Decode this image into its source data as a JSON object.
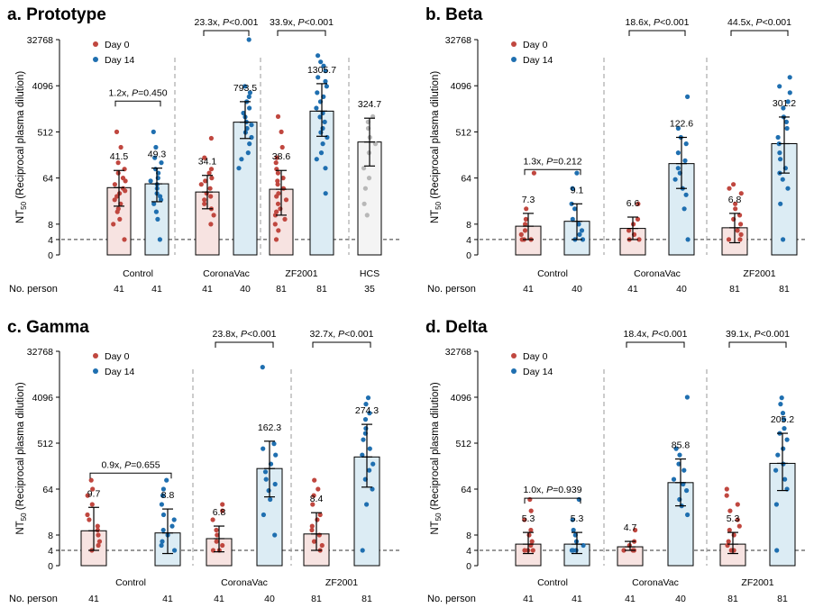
{
  "colors": {
    "day0_point": "#c0473f",
    "day14_point": "#1f6fb0",
    "day0_bar": "#f7e3e1",
    "day14_bar": "#dcecf4",
    "hcs_bar": "#f4f4f4",
    "hcs_point": "#b8b8b8"
  },
  "row_label": "No. person",
  "chart_data": [
    {
      "type": "bar",
      "title": "a. Prototype",
      "ylabel": "NT50 (Reciprocal plasma dilution)",
      "yscale": "log2",
      "ylim": [
        0,
        32768
      ],
      "yticks": [
        "0",
        "4",
        "8",
        "64",
        "512",
        "4096",
        "32768"
      ],
      "limit_of_detection": 4,
      "legend": {
        "position": "top-left",
        "entries": [
          "Day 0",
          "Day 14"
        ]
      },
      "groups": [
        {
          "name": "Control",
          "comparison": "1.2x, P=0.450",
          "bars": [
            {
              "series": "Day 0",
              "gmt": 41.5,
              "label": "41.5",
              "n": "41",
              "ci": [
                18,
                90
              ],
              "points": [
                4,
                8,
                10,
                14,
                16,
                20,
                24,
                28,
                32,
                36,
                40,
                48,
                56,
                64,
                80,
                96,
                128,
                256,
                512
              ]
            },
            {
              "series": "Day 14",
              "gmt": 49.3,
              "label": "49.3",
              "n": "41",
              "ci": [
                22,
                100
              ],
              "points": [
                4,
                10,
                14,
                20,
                24,
                28,
                32,
                40,
                48,
                56,
                64,
                80,
                96,
                128,
                160,
                256,
                512
              ]
            }
          ]
        },
        {
          "name": "CoronaVac",
          "comparison": "23.3x, P<0.001",
          "bars": [
            {
              "series": "Day 0",
              "gmt": 34.1,
              "label": "34.1",
              "n": "41",
              "ci": [
                16,
                72
              ],
              "points": [
                8,
                12,
                16,
                20,
                24,
                28,
                32,
                40,
                48,
                56,
                64,
                80,
                96,
                160,
                384
              ]
            },
            {
              "series": "Day 14",
              "gmt": 793.5,
              "label": "793.5",
              "n": "40",
              "ci": [
                380,
                2000
              ],
              "points": [
                100,
                150,
                200,
                300,
                400,
                500,
                600,
                700,
                800,
                1000,
                1200,
                1500,
                2000,
                2500,
                3000,
                4000,
                32768
              ]
            }
          ]
        },
        {
          "name": "ZF2001",
          "comparison": "33.9x, P<0.001",
          "bars": [
            {
              "series": "Day 0",
              "gmt": 38.6,
              "label": "38.6",
              "n": "81",
              "ci": [
                12,
                90
              ],
              "points": [
                4,
                6,
                8,
                10,
                12,
                14,
                16,
                20,
                24,
                28,
                32,
                40,
                48,
                56,
                64,
                80,
                96,
                128,
                160,
                256,
                512,
                1024
              ]
            },
            {
              "series": "Day 14",
              "gmt": 1305.7,
              "label": "1305.7",
              "n": "81",
              "ci": [
                420,
                4500
              ],
              "points": [
                32,
                100,
                150,
                200,
                300,
                400,
                500,
                600,
                800,
                1000,
                1200,
                1500,
                2000,
                2500,
                3000,
                4000,
                5000,
                6000,
                8000,
                10000,
                12000,
                16000
              ]
            }
          ]
        },
        {
          "name": "HCS",
          "comparison": "",
          "bars": [
            {
              "series": "HCS",
              "gmt": 324.7,
              "label": "324.7",
              "n": "35",
              "ci": [
                110,
                950
              ],
              "points": [
                12,
                20,
                40,
                64,
                100,
                200,
                300,
                400,
                600,
                800,
                1024
              ]
            }
          ]
        }
      ]
    },
    {
      "type": "bar",
      "title": "b. Beta",
      "ylabel": "NT50 (Reciprocal plasma dilution)",
      "yscale": "log2",
      "ylim": [
        0,
        32768
      ],
      "yticks": [
        "0",
        "4",
        "8",
        "64",
        "512",
        "4096",
        "32768"
      ],
      "limit_of_detection": 4,
      "legend": {
        "position": "top-left",
        "entries": [
          "Day 0",
          "Day 14"
        ]
      },
      "groups": [
        {
          "name": "Control",
          "comparison": "1.3x, P=0.212",
          "bars": [
            {
              "series": "Day 0",
              "gmt": 7.3,
              "label": "7.3",
              "n": "41",
              "ci": [
                4,
                13
              ],
              "points": [
                4,
                4,
                4,
                5,
                6,
                8,
                10,
                16,
                80
              ]
            },
            {
              "series": "Day 14",
              "gmt": 9.1,
              "label": "9.1",
              "n": "40",
              "ci": [
                4,
                20
              ],
              "points": [
                4,
                4,
                5,
                6,
                8,
                10,
                16,
                20,
                40,
                80
              ]
            }
          ]
        },
        {
          "name": "CoronaVac",
          "comparison": "18.6x, P<0.001",
          "bars": [
            {
              "series": "Day 0",
              "gmt": 6.6,
              "label": "6.6",
              "n": "41",
              "ci": [
                4,
                11
              ],
              "points": [
                4,
                4,
                5,
                6,
                8,
                10,
                20
              ]
            },
            {
              "series": "Day 14",
              "gmt": 122.6,
              "label": "122.6",
              "n": "40",
              "ci": [
                40,
                400
              ],
              "points": [
                4,
                16,
                30,
                40,
                60,
                80,
                100,
                140,
                200,
                300,
                400,
                600,
                2500
              ]
            }
          ]
        },
        {
          "name": "ZF2001",
          "comparison": "44.5x, P<0.001",
          "bars": [
            {
              "series": "Day 0",
              "gmt": 6.8,
              "label": "6.8",
              "n": "81",
              "ci": [
                3,
                13
              ],
              "points": [
                4,
                4,
                5,
                6,
                8,
                10,
                12,
                16,
                20,
                32,
                40,
                48
              ]
            },
            {
              "series": "Day 14",
              "gmt": 301.2,
              "label": "301.2",
              "n": "81",
              "ci": [
                80,
                1000
              ],
              "points": [
                4,
                20,
                40,
                60,
                80,
                100,
                150,
                200,
                300,
                400,
                600,
                800,
                1000,
                1500,
                2000,
                3000,
                4000,
                6000
              ]
            }
          ]
        }
      ]
    },
    {
      "type": "bar",
      "title": "c. Gamma",
      "ylabel": "NT50 (Reciprocal plasma dilution)",
      "yscale": "log2",
      "ylim": [
        0,
        32768
      ],
      "yticks": [
        "0",
        "4",
        "8",
        "64",
        "512",
        "4096",
        "32768"
      ],
      "limit_of_detection": 4,
      "legend": {
        "position": "top-left",
        "entries": [
          "Day 0",
          "Day 14"
        ]
      },
      "groups": [
        {
          "name": "Control",
          "comparison": "0.9x, P=0.655",
          "bars": [
            {
              "series": "Day 0",
              "gmt": 9.7,
              "label": "9.7",
              "n": "41",
              "ci": [
                4,
                28
              ],
              "points": [
                4,
                5,
                6,
                8,
                10,
                12,
                16,
                20,
                32,
                48,
                64,
                96
              ]
            },
            {
              "series": "Day 14",
              "gmt": 8.8,
              "label": "8.8",
              "n": "41",
              "ci": [
                3,
                26
              ],
              "points": [
                4,
                5,
                6,
                8,
                10,
                12,
                16,
                20,
                32,
                48,
                64,
                96
              ]
            }
          ]
        },
        {
          "name": "CoronaVac",
          "comparison": "23.8x, P<0.001",
          "bars": [
            {
              "series": "Day 0",
              "gmt": 6.8,
              "label": "6.8",
              "n": "41",
              "ci": [
                3.5,
                12
              ],
              "points": [
                4,
                4,
                5,
                6,
                8,
                10,
                16,
                24,
                32
              ]
            },
            {
              "series": "Day 14",
              "gmt": 162.3,
              "label": "162.3",
              "n": "40",
              "ci": [
                45,
                560
              ],
              "points": [
                8,
                20,
                40,
                60,
                80,
                100,
                140,
                200,
                300,
                400,
                500,
                16000
              ]
            }
          ]
        },
        {
          "name": "ZF2001",
          "comparison": "32.7x, P<0.001",
          "bars": [
            {
              "series": "Day 0",
              "gmt": 8.4,
              "label": "8.4",
              "n": "81",
              "ci": [
                4,
                22
              ],
              "points": [
                4,
                5,
                6,
                8,
                10,
                12,
                16,
                20,
                32,
                48,
                64,
                96
              ]
            },
            {
              "series": "Day 14",
              "gmt": 274.3,
              "label": "274.3",
              "n": "81",
              "ci": [
                70,
                1200
              ],
              "points": [
                4,
                32,
                64,
                100,
                150,
                200,
                300,
                400,
                600,
                800,
                1000,
                1500,
                2000,
                3000,
                4000
              ]
            }
          ]
        }
      ]
    },
    {
      "type": "bar",
      "title": "d. Delta",
      "ylabel": "NT50 (Reciprocal plasma dilution)",
      "yscale": "log2",
      "ylim": [
        0,
        32768
      ],
      "yticks": [
        "0",
        "4",
        "8",
        "64",
        "512",
        "4096",
        "32768"
      ],
      "limit_of_detection": 4,
      "legend": {
        "position": "top-left",
        "entries": [
          "Day 0",
          "Day 14"
        ]
      },
      "groups": [
        {
          "name": "Control",
          "comparison": "1.0x, P=0.939",
          "bars": [
            {
              "series": "Day 0",
              "gmt": 5.3,
              "label": "5.3",
              "n": "41",
              "ci": [
                3,
                9
              ],
              "points": [
                4,
                4,
                4,
                5,
                6,
                8,
                10,
                16,
                24,
                40
              ]
            },
            {
              "series": "Day 14",
              "gmt": 5.3,
              "label": "5.3",
              "n": "41",
              "ci": [
                3,
                9
              ],
              "points": [
                4,
                4,
                4,
                5,
                6,
                8,
                10,
                16,
                40
              ]
            }
          ]
        },
        {
          "name": "CoronaVac",
          "comparison": "18.4x, P<0.001",
          "bars": [
            {
              "series": "Day 0",
              "gmt": 4.7,
              "label": "4.7",
              "n": "41",
              "ci": [
                4,
                6
              ],
              "points": [
                4,
                4,
                4,
                5,
                6,
                10
              ]
            },
            {
              "series": "Day 14",
              "gmt": 85.8,
              "label": "85.8",
              "n": "40",
              "ci": [
                30,
                250
              ],
              "points": [
                20,
                30,
                40,
                60,
                80,
                100,
                150,
                200,
                300,
                400,
                4096
              ]
            }
          ]
        },
        {
          "name": "ZF2001",
          "comparison": "39.1x, P<0.001",
          "bars": [
            {
              "series": "Day 0",
              "gmt": 5.3,
              "label": "5.3",
              "n": "81",
              "ci": [
                3,
                9
              ],
              "points": [
                4,
                4,
                5,
                6,
                8,
                10,
                12,
                16,
                24,
                32,
                48,
                64
              ]
            },
            {
              "series": "Day 14",
              "gmt": 205.2,
              "label": "205.2",
              "n": "81",
              "ci": [
                60,
                800
              ],
              "points": [
                4,
                32,
                64,
                100,
                150,
                200,
                300,
                400,
                600,
                800,
                1000,
                1500,
                2000,
                3000,
                4000
              ]
            }
          ]
        }
      ]
    }
  ]
}
